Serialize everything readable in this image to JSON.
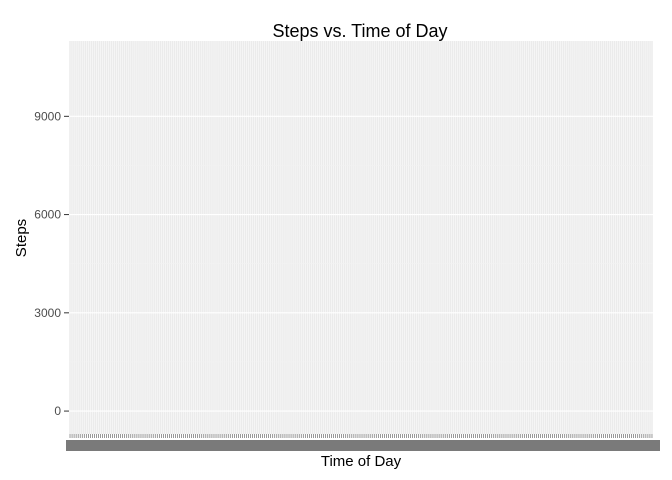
{
  "chart_data": {
    "type": "line",
    "title": "Steps vs. Time of Day",
    "xlabel": "Time of Day",
    "ylabel": "Steps",
    "x_axis": {
      "kind": "categorical",
      "n_categories": 288,
      "categories_note_hidden": true
    },
    "ylim": [
      -700,
      11300
    ],
    "yticks": [
      0,
      3000,
      6000,
      9000
    ],
    "ytick_labels": [
      "0",
      "3000",
      "6000",
      "9000"
    ],
    "grid": true,
    "legend": "none",
    "series": [],
    "colors": {
      "panel_bg": "#ebebeb",
      "major_grid": "#ffffff",
      "minor_grid": "#f2f2f2",
      "tick_text": "#4d4d4d",
      "tick_mark": "#333333"
    }
  }
}
